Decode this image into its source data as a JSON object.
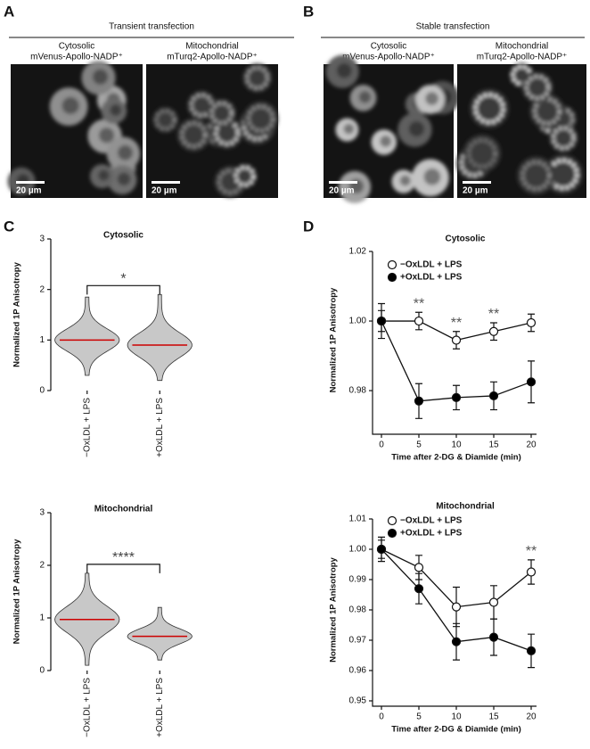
{
  "panel_a": {
    "label": "A",
    "heading": "Transient transfection",
    "images": [
      {
        "caption": [
          "Cytosolic",
          "mVenus-Apollo-NADP⁺"
        ],
        "scale_bar": "20 µm"
      },
      {
        "caption": [
          "Mitochondrial",
          "mTurq2-Apollo-NADP⁺"
        ],
        "scale_bar": "20 µm"
      }
    ]
  },
  "panel_b": {
    "label": "B",
    "heading": "Stable transfection",
    "images": [
      {
        "caption": [
          "Cytosolic",
          "mVenus-Apollo-NADP⁺"
        ],
        "scale_bar": "20 µm"
      },
      {
        "caption": [
          "Mitochondrial",
          "mTurq2-Apollo-NADP⁺"
        ],
        "scale_bar": "20 µm"
      }
    ]
  },
  "panel_c": {
    "label": "C",
    "charts": [
      {
        "type": "violin",
        "title": "Cytosolic",
        "ylabel": "Normalized 1P Anisotropy",
        "categories": [
          "−OxLDL + LPS",
          "+OxLDL + LPS"
        ],
        "values": [
          1.0,
          0.9
        ],
        "min": [
          0.3,
          0.2
        ],
        "max": [
          1.85,
          1.9
        ],
        "ylim": [
          0,
          3
        ],
        "yticks": [
          0,
          1,
          2,
          3
        ],
        "significance": "*",
        "color": "#c8c8c8",
        "median_color": "#cc0000"
      },
      {
        "type": "violin",
        "title": "Mitochondrial",
        "ylabel": "Normalized 1P Anisotropy",
        "categories": [
          "−OxLDL + LPS",
          "+OxLDL + LPS"
        ],
        "values": [
          0.97,
          0.65
        ],
        "min": [
          0.1,
          0.2
        ],
        "max": [
          1.85,
          1.2
        ],
        "ylim": [
          0,
          3
        ],
        "yticks": [
          0,
          1,
          2,
          3
        ],
        "significance": "****",
        "color": "#c8c8c8",
        "median_color": "#cc0000"
      }
    ]
  },
  "panel_d": {
    "label": "D",
    "charts": [
      {
        "type": "line",
        "title": "Cytosolic",
        "xlabel": "Time after 2-DG & Diamide (min)",
        "ylabel": "Normalized 1P Anisotropy",
        "x": [
          0,
          5,
          10,
          15,
          20
        ],
        "xlim": [
          0,
          20
        ],
        "xticks": [
          0,
          5,
          10,
          15,
          20
        ],
        "ylim": [
          0.969,
          1.02
        ],
        "yticks": [
          0.98,
          {
            "value": 1,
            "label": "1.00"
          },
          1.02
        ],
        "series": [
          {
            "name": "−OxLDL + LPS",
            "color": "#ffffff",
            "values": [
              1.0,
              1.0,
              0.9945,
              0.997,
              0.9995
            ],
            "errors": [
              0.003,
              0.0025,
              0.0025,
              0.0025,
              0.0025
            ]
          },
          {
            "name": "+OxLDL + LPS",
            "color": "#000000",
            "values": [
              1.0,
              0.977,
              0.978,
              0.9785,
              0.9825
            ],
            "errors": [
              0.005,
              0.005,
              0.0035,
              0.004,
              0.006
            ]
          }
        ],
        "annotations": [
          {
            "x": 5,
            "text": "**"
          },
          {
            "x": 10,
            "text": "**"
          },
          {
            "x": 15,
            "text": "**"
          }
        ]
      },
      {
        "type": "line",
        "title": "Mitochondrial",
        "xlabel": "Time after 2-DG & Diamide (min)",
        "ylabel": "Normalized 1P Anisotropy",
        "x": [
          0,
          5,
          10,
          15,
          20
        ],
        "xlim": [
          0,
          20
        ],
        "xticks": [
          0,
          5,
          10,
          15,
          20
        ],
        "ylim": [
          0.95,
          1.01
        ],
        "yticks": [
          0.95,
          0.96,
          0.97,
          0.98,
          0.99,
          {
            "value": 1,
            "label": "1.00"
          },
          1.01
        ],
        "series": [
          {
            "name": "−OxLDL + LPS",
            "color": "#ffffff",
            "values": [
              1.0,
              0.994,
              0.981,
              0.9825,
              0.9925
            ],
            "errors": [
              0.003,
              0.004,
              0.0065,
              0.0055,
              0.004
            ]
          },
          {
            "name": "+OxLDL + LPS",
            "color": "#000000",
            "values": [
              1.0,
              0.987,
              0.9695,
              0.971,
              0.9665
            ],
            "errors": [
              0.004,
              0.005,
              0.006,
              0.006,
              0.0055
            ]
          }
        ],
        "annotations": [
          {
            "x": 20,
            "text": "**"
          }
        ]
      }
    ]
  }
}
